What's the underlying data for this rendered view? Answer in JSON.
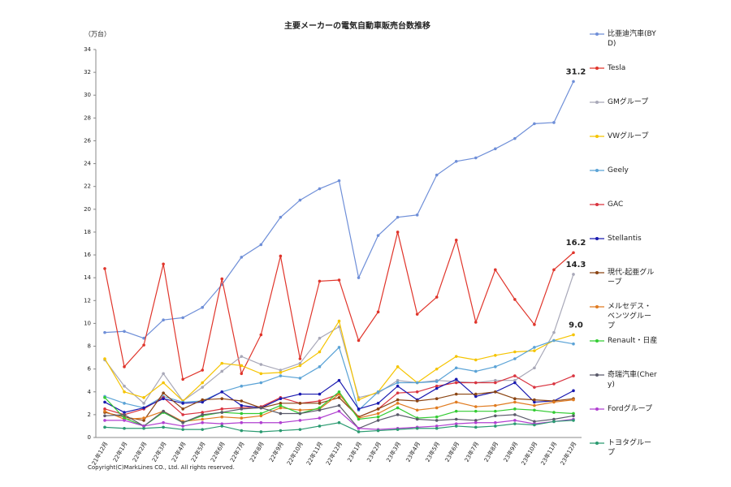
{
  "chart_data": {
    "type": "line",
    "title": "主要メーカーの電気自動車販売台数推移",
    "y_label": "（万台）",
    "copyright": "Copyright(C)MarkLines CO., Ltd. All rights reserved.",
    "categories": [
      "21年12月",
      "22年1月",
      "22年2月",
      "22年3月",
      "22年4月",
      "22年5月",
      "22年6月",
      "22年7月",
      "22年8月",
      "22年9月",
      "22年10月",
      "22年11月",
      "22年12月",
      "23年1月",
      "23年2月",
      "23年3月",
      "23年4月",
      "23年5月",
      "23年6月",
      "23年7月",
      "23年8月",
      "23年9月",
      "23年10月",
      "23年11月",
      "23年12月"
    ],
    "ylim": [
      0,
      34
    ],
    "yticks": [
      0,
      2,
      4,
      6,
      8,
      10,
      12,
      14,
      16,
      18,
      20,
      22,
      24,
      26,
      28,
      30,
      32,
      34
    ],
    "legend": "right",
    "series": [
      {
        "name": "比亜迪汽車(BYD)",
        "color": "#6f8fd8",
        "values": [
          9.2,
          9.3,
          8.7,
          10.3,
          10.5,
          11.4,
          13.4,
          15.8,
          16.9,
          19.3,
          20.8,
          21.8,
          22.5,
          14.0,
          17.7,
          19.3,
          19.5,
          23.0,
          24.2,
          24.5,
          25.3,
          26.2,
          27.5,
          27.6,
          31.2
        ],
        "value_labels": [
          null,
          null,
          null,
          null,
          null,
          null,
          null,
          null,
          null,
          null,
          null,
          null,
          null,
          null,
          null,
          null,
          null,
          null,
          null,
          null,
          null,
          null,
          null,
          null,
          "31.2"
        ]
      },
      {
        "name": "Tesla",
        "color": "#e0352b",
        "values": [
          14.8,
          6.2,
          8.1,
          15.2,
          5.1,
          5.9,
          13.9,
          5.6,
          9.0,
          15.9,
          6.9,
          13.7,
          13.8,
          8.5,
          11.0,
          18.0,
          10.8,
          12.3,
          17.3,
          10.1,
          14.7,
          12.1,
          9.9,
          14.7,
          16.2
        ],
        "value_labels": [
          null,
          null,
          null,
          null,
          null,
          null,
          null,
          null,
          null,
          null,
          null,
          null,
          null,
          null,
          null,
          null,
          null,
          null,
          null,
          null,
          null,
          null,
          null,
          null,
          "16.2"
        ]
      },
      {
        "name": "GMグループ",
        "color": "#a8a8b8",
        "values": [
          6.8,
          4.5,
          3.0,
          5.6,
          3.2,
          4.4,
          5.8,
          7.1,
          6.4,
          5.9,
          6.5,
          8.7,
          9.7,
          3.5,
          3.9,
          5.0,
          4.8,
          5.0,
          4.9,
          4.8,
          5.0,
          5.0,
          6.1,
          9.2,
          14.3
        ],
        "value_labels": [
          null,
          null,
          null,
          null,
          null,
          null,
          null,
          null,
          null,
          null,
          null,
          null,
          null,
          null,
          null,
          null,
          null,
          null,
          null,
          null,
          null,
          null,
          null,
          null,
          "14.3"
        ]
      },
      {
        "name": "VWグループ",
        "color": "#f5c400",
        "values": [
          6.9,
          4.0,
          3.5,
          4.8,
          3.2,
          4.8,
          6.5,
          6.3,
          5.6,
          5.7,
          6.3,
          7.5,
          10.2,
          3.3,
          4.0,
          6.2,
          4.8,
          6.0,
          7.1,
          6.8,
          7.2,
          7.5,
          7.6,
          8.5,
          9.0
        ],
        "value_labels": [
          null,
          null,
          null,
          null,
          null,
          null,
          null,
          null,
          null,
          null,
          null,
          null,
          null,
          null,
          null,
          null,
          null,
          null,
          null,
          null,
          null,
          null,
          null,
          null,
          "9.0"
        ]
      },
      {
        "name": "Geely",
        "color": "#5ba3d6",
        "values": [
          3.6,
          3.0,
          2.6,
          3.6,
          3.1,
          3.2,
          4.0,
          4.5,
          4.8,
          5.4,
          5.2,
          6.2,
          7.9,
          2.4,
          4.0,
          4.8,
          4.8,
          4.9,
          6.1,
          5.8,
          6.2,
          6.9,
          7.9,
          8.5,
          8.2
        ]
      },
      {
        "name": "GAC",
        "color": "#d9333f",
        "values": [
          2.5,
          2.0,
          2.5,
          3.5,
          2.0,
          2.2,
          2.5,
          2.6,
          2.7,
          3.5,
          3.0,
          3.2,
          3.8,
          1.8,
          2.5,
          3.9,
          4.0,
          4.5,
          4.8,
          4.8,
          4.8,
          5.4,
          4.4,
          4.7,
          5.4
        ]
      },
      {
        "name": "Stellantis",
        "color": "#1a1ab0",
        "values": [
          3.1,
          2.2,
          2.6,
          3.4,
          3.0,
          3.1,
          4.0,
          2.8,
          2.6,
          3.4,
          3.8,
          3.8,
          5.0,
          2.5,
          3.0,
          4.5,
          3.3,
          4.3,
          5.1,
          3.6,
          4.0,
          4.8,
          3.1,
          3.2,
          4.1
        ]
      },
      {
        "name": "現代-起亜グループ",
        "color": "#8b4513",
        "values": [
          2.2,
          1.8,
          1.5,
          3.9,
          2.5,
          3.3,
          3.4,
          3.2,
          2.6,
          3.0,
          3.0,
          3.0,
          3.5,
          1.8,
          2.5,
          3.3,
          3.2,
          3.4,
          3.8,
          3.8,
          4.0,
          3.4,
          3.3,
          3.2,
          3.4
        ]
      },
      {
        "name": "メルセデス・ベンツグループ",
        "color": "#e07b20",
        "values": [
          2.3,
          1.6,
          1.7,
          2.3,
          1.4,
          1.6,
          1.8,
          1.7,
          1.9,
          2.6,
          2.4,
          2.5,
          3.8,
          1.7,
          2.1,
          3.0,
          2.4,
          2.6,
          3.1,
          2.7,
          2.8,
          3.1,
          2.8,
          3.1,
          3.3
        ]
      },
      {
        "name": "Renault・日産",
        "color": "#33cc33",
        "values": [
          3.5,
          1.7,
          1.0,
          2.2,
          1.3,
          1.9,
          2.2,
          2.1,
          2.1,
          2.8,
          2.1,
          2.6,
          4.0,
          1.6,
          1.8,
          2.6,
          1.7,
          1.8,
          2.3,
          2.3,
          2.3,
          2.5,
          2.4,
          2.2,
          2.1
        ]
      },
      {
        "name": "奇瑞汽車(Chery)",
        "color": "#5a5a6a",
        "values": [
          1.9,
          2.0,
          1.0,
          2.3,
          1.3,
          2.0,
          2.2,
          2.5,
          2.6,
          2.1,
          2.1,
          2.4,
          2.8,
          0.8,
          1.5,
          2.0,
          1.6,
          1.5,
          1.6,
          1.5,
          1.9,
          2.0,
          1.4,
          1.6,
          1.9
        ]
      },
      {
        "name": "Fordグループ",
        "color": "#b040d0",
        "values": [
          1.5,
          1.5,
          1.0,
          1.3,
          1.0,
          1.3,
          1.2,
          1.3,
          1.3,
          1.3,
          1.5,
          1.7,
          2.3,
          0.8,
          0.7,
          0.8,
          0.9,
          1.0,
          1.2,
          1.3,
          1.3,
          1.5,
          1.2,
          1.4,
          1.6
        ]
      },
      {
        "name": "トヨタグループ",
        "color": "#2a9a70",
        "values": [
          0.9,
          0.8,
          0.8,
          0.9,
          0.7,
          0.7,
          1.0,
          0.6,
          0.5,
          0.6,
          0.7,
          1.0,
          1.3,
          0.5,
          0.6,
          0.7,
          0.8,
          0.8,
          1.0,
          0.9,
          1.0,
          1.2,
          1.1,
          1.4,
          1.5
        ]
      }
    ]
  }
}
